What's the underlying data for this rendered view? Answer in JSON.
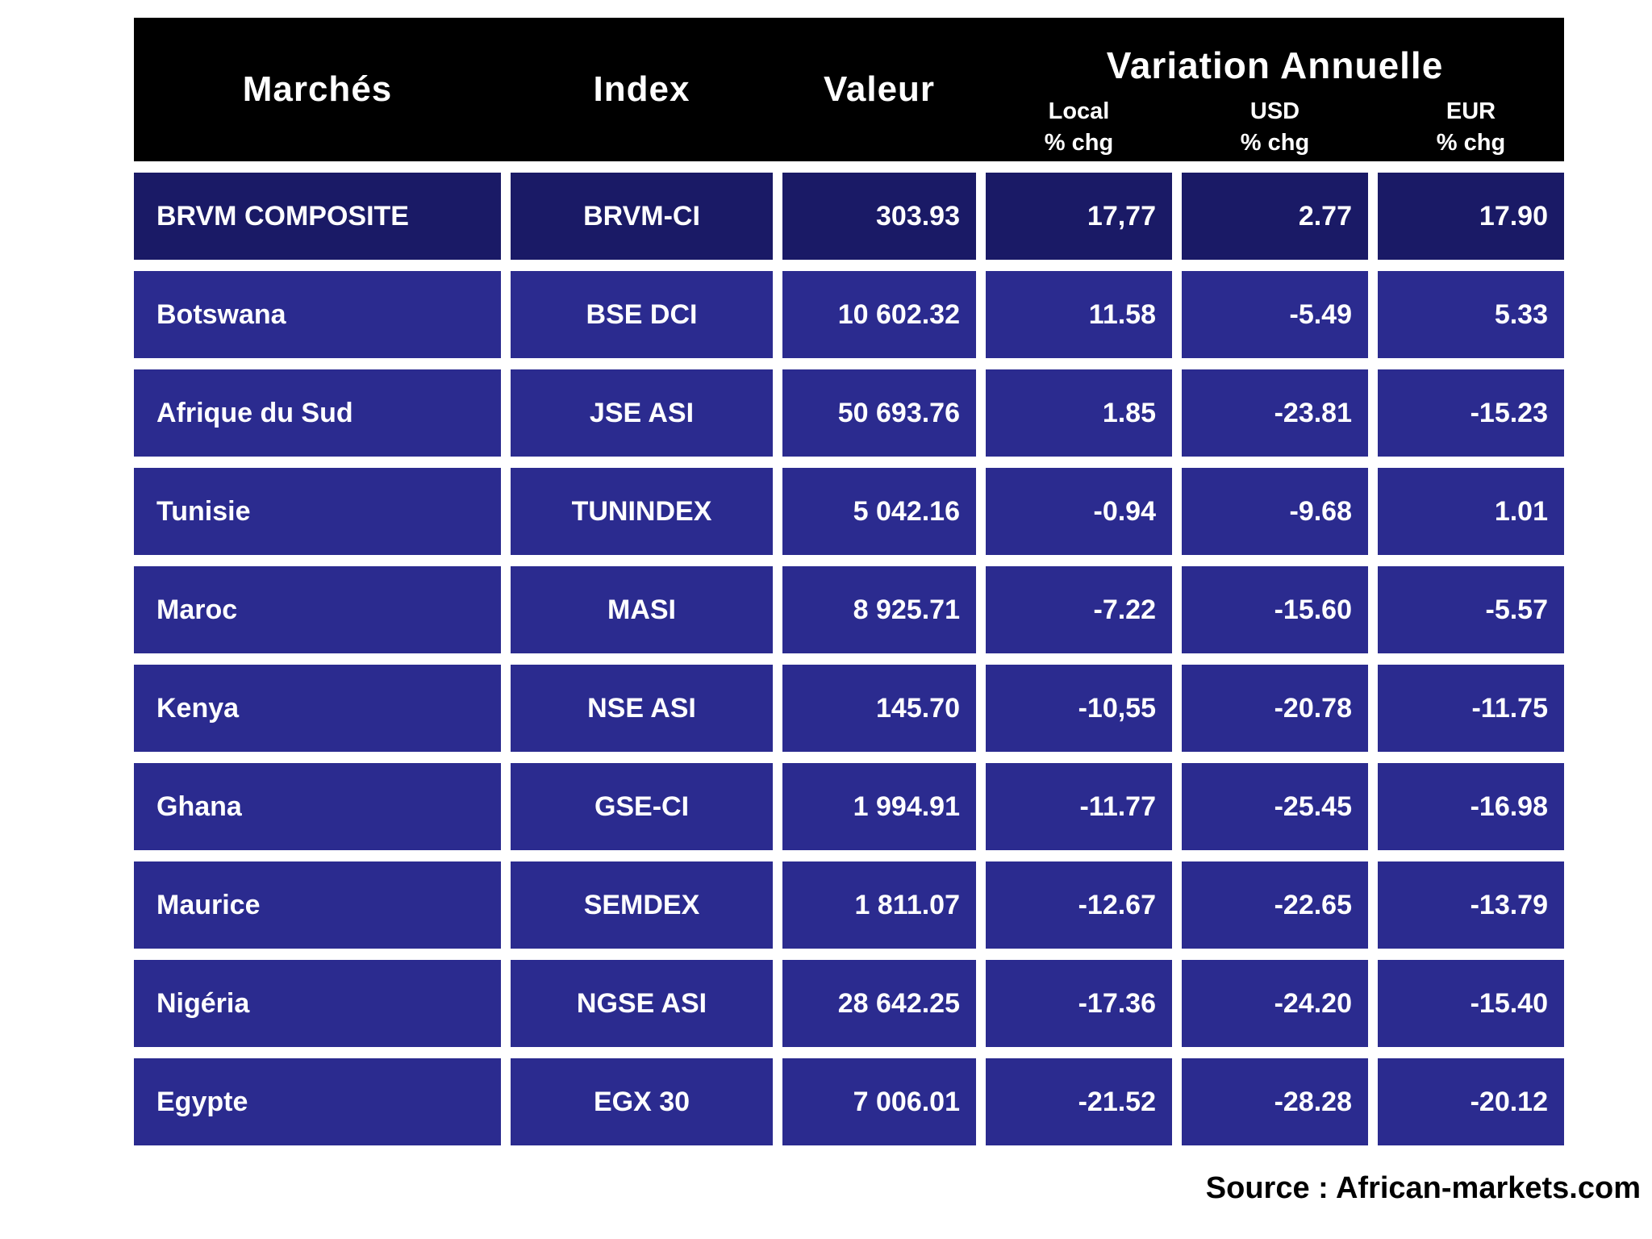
{
  "header": {
    "col_marches": "Marchés",
    "col_index": "Index",
    "col_valeur": "Valeur",
    "variation_title": "Variation Annuelle",
    "sub_local": "Local",
    "sub_usd": "USD",
    "sub_eur": "EUR",
    "pct_chg": "% chg"
  },
  "chart_data": {
    "type": "table",
    "columns": [
      "Marchés",
      "Index",
      "Valeur",
      "Local % chg",
      "USD % chg",
      "EUR % chg"
    ],
    "column_group": {
      "label": "Variation Annuelle",
      "spans": [
        "Local % chg",
        "USD % chg",
        "EUR % chg"
      ]
    },
    "rows": [
      {
        "market": "BRVM COMPOSITE",
        "index": "BRVM-CI",
        "valeur": "303.93",
        "local": "17,77",
        "usd": "2.77",
        "eur": "17.90"
      },
      {
        "market": "Botswana",
        "index": "BSE DCI",
        "valeur": "10 602.32",
        "local": "11.58",
        "usd": "-5.49",
        "eur": "5.33"
      },
      {
        "market": "Afrique du Sud",
        "index": "JSE ASI",
        "valeur": "50 693.76",
        "local": "1.85",
        "usd": "-23.81",
        "eur": "-15.23"
      },
      {
        "market": "Tunisie",
        "index": "TUNINDEX",
        "valeur": "5 042.16",
        "local": "-0.94",
        "usd": "-9.68",
        "eur": "1.01"
      },
      {
        "market": "Maroc",
        "index": "MASI",
        "valeur": "8 925.71",
        "local": "-7.22",
        "usd": "-15.60",
        "eur": "-5.57"
      },
      {
        "market": "Kenya",
        "index": "NSE ASI",
        "valeur": "145.70",
        "local": "-10,55",
        "usd": "-20.78",
        "eur": "-11.75"
      },
      {
        "market": "Ghana",
        "index": "GSE-CI",
        "valeur": "1 994.91",
        "local": "-11.77",
        "usd": "-25.45",
        "eur": "-16.98"
      },
      {
        "market": "Maurice",
        "index": "SEMDEX",
        "valeur": "1 811.07",
        "local": "-12.67",
        "usd": "-22.65",
        "eur": "-13.79"
      },
      {
        "market": "Nigéria",
        "index": "NGSE ASI",
        "valeur": "28 642.25",
        "local": "-17.36",
        "usd": "-24.20",
        "eur": "-15.40"
      },
      {
        "market": "Egypte",
        "index": "EGX 30",
        "valeur": "7 006.01",
        "local": "-21.52",
        "usd": "-28.28",
        "eur": "-20.12"
      }
    ]
  },
  "footer": {
    "source": "Source : African-markets.com"
  },
  "colors": {
    "header_bg": "#000000",
    "header_text": "#ffffff",
    "row_first_bg": "#1a1a66",
    "row_bg": "#2b2b8f",
    "row_text": "#ffffff"
  }
}
